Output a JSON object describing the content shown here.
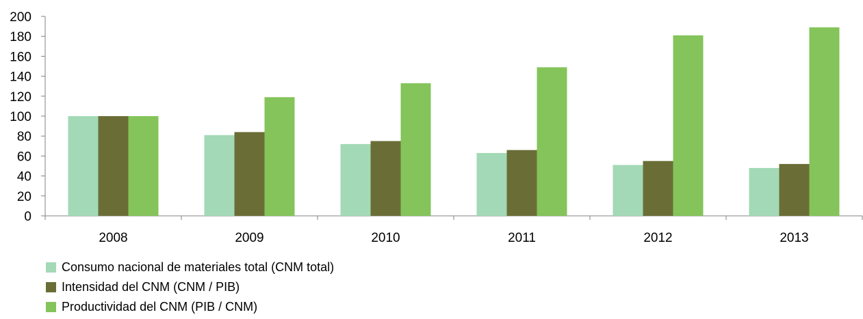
{
  "chart_data": {
    "type": "bar",
    "categories": [
      "2008",
      "2009",
      "2010",
      "2011",
      "2012",
      "2013"
    ],
    "series": [
      {
        "name": "Consumo nacional de materiales total (CNM total)",
        "color": "#a3d9b6",
        "values": [
          100,
          81,
          72,
          63,
          51,
          48
        ]
      },
      {
        "name": "Intensidad del CNM (CNM / PIB)",
        "color": "#6a6e36",
        "values": [
          100,
          84,
          75,
          66,
          55,
          52
        ]
      },
      {
        "name": "Productividad del CNM (PIB / CNM)",
        "color": "#84c45a",
        "values": [
          100,
          119,
          133,
          149,
          181,
          189
        ]
      }
    ],
    "ylim": [
      0,
      200
    ],
    "yticks": [
      "0",
      "20",
      "40",
      "60",
      "80",
      "100",
      "120",
      "140",
      "160",
      "180",
      "200"
    ],
    "grid": false,
    "legend_position": "bottom-left"
  }
}
